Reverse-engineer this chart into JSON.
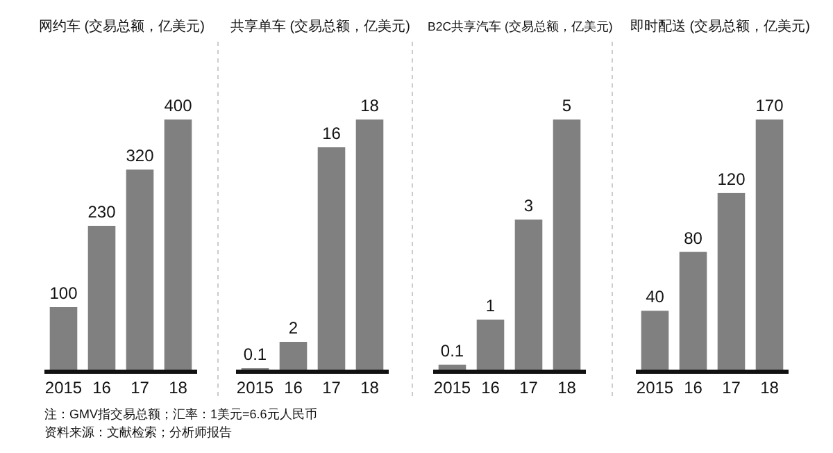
{
  "chart_data": [
    {
      "type": "bar",
      "title": "网约车 (交易总额，亿美元)",
      "categories": [
        "2015",
        "16",
        "17",
        "18"
      ],
      "values": [
        100,
        230,
        320,
        400
      ],
      "color": "#808080",
      "data_labels": true,
      "annotations": [
        "注：GMV指交易总额；汇率：1美元=6.6元人民币",
        "资料来源：文献检索；分析师报告"
      ]
    },
    {
      "type": "bar",
      "title": "共享单车 (交易总额，亿美元)",
      "categories": [
        "2015",
        "16",
        "17",
        "18"
      ],
      "values": [
        0.1,
        2,
        16,
        18
      ],
      "color": "#808080",
      "data_labels": true
    },
    {
      "type": "bar",
      "title": "B2C共享汽车 (交易总额，亿美元)",
      "categories": [
        "2015",
        "16",
        "17",
        "18"
      ],
      "values": [
        0.1,
        1,
        3,
        5
      ],
      "color": "#808080",
      "data_labels": true
    },
    {
      "type": "bar",
      "title": "即时配送 (交易总额，亿美元)",
      "categories": [
        "2015",
        "16",
        "17",
        "18"
      ],
      "values": [
        40,
        80,
        120,
        170
      ],
      "color": "#808080",
      "data_labels": true
    }
  ]
}
